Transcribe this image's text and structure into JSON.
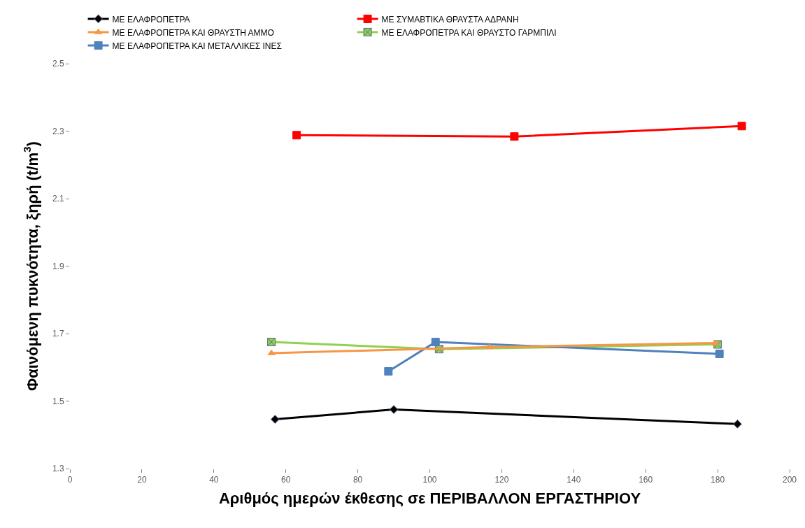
{
  "chart_data": {
    "type": "line",
    "xlabel": "Αριθμός ημερών έκθεσης σε ΠΕΡΙΒΑΛΛΟΝ ΕΡΓΑΣΤΗΡΙΟΥ",
    "ylabel": "Φαινόμενη πυκνότητα, ξηρή (t/m$^{3}$)",
    "xlim": [
      0,
      200
    ],
    "xticks": [
      0,
      20,
      40,
      60,
      80,
      100,
      120,
      140,
      160,
      180,
      200
    ],
    "ylim": [
      1.3,
      2.5
    ],
    "yticks": [
      {
        "value": 1.3,
        "label": "1.3"
      },
      {
        "value": 1.5,
        "label": "1.5"
      },
      {
        "value": 1.7,
        "label": "1.7"
      },
      {
        "value": 1.9,
        "label": "1.9"
      },
      {
        "value": 2.1,
        "label": "2.1"
      },
      {
        "value": 2.3,
        "label": "2.3"
      },
      {
        "value": 2.5,
        "label": "2.5"
      }
    ],
    "legend": "top",
    "series": [
      {
        "name": "ΜΕ ΕΛΑΦΡΟΠΕΤΡΑ",
        "color": "#000000",
        "marker": "diamond",
        "x": [
          57,
          90,
          185.5
        ],
        "values": [
          1.446,
          1.475,
          1.432
        ]
      },
      {
        "name": "ΜΕ ΣΥΜΑΒΤΙΚΑ ΘΡΑΥΣΤΑ ΑΔΡΑΝΗ",
        "color": "#ff0000",
        "marker": "square",
        "x": [
          63,
          123.5,
          186.7
        ],
        "values": [
          2.288,
          2.284,
          2.315
        ]
      },
      {
        "name": "ΜΕ ΕΛΑΦΡΟΠΕΤΡΑ ΚΑΙ ΘΡΑΥΣΤΗ ΑΜΜΟ",
        "color": "#f79646",
        "marker": "triangle",
        "x": [
          56,
          116.6,
          179.3
        ],
        "values": [
          1.642,
          1.66,
          1.672
        ]
      },
      {
        "name": "ΜΕ ΕΛΑΦΡΟΠΕΤΡΑ ΚΑΙ ΘΡΑΥΣΤΟ ΓΑΡΜΠΙΛΙ",
        "color": "#92d050",
        "marker": "cross",
        "x": [
          56,
          102.6,
          180
        ],
        "values": [
          1.675,
          1.654,
          1.668
        ]
      },
      {
        "name": "ΜΕ ΕΛΑΦΡΟΠΕΤΡΑ ΚΑΙ ΜΕΤΑΛΛΙΚΕΣ ΙΝΕΣ",
        "color": "#4f81bd",
        "marker": "square",
        "x": [
          88.5,
          101.6,
          180.5
        ],
        "values": [
          1.588,
          1.675,
          1.64
        ]
      }
    ]
  }
}
